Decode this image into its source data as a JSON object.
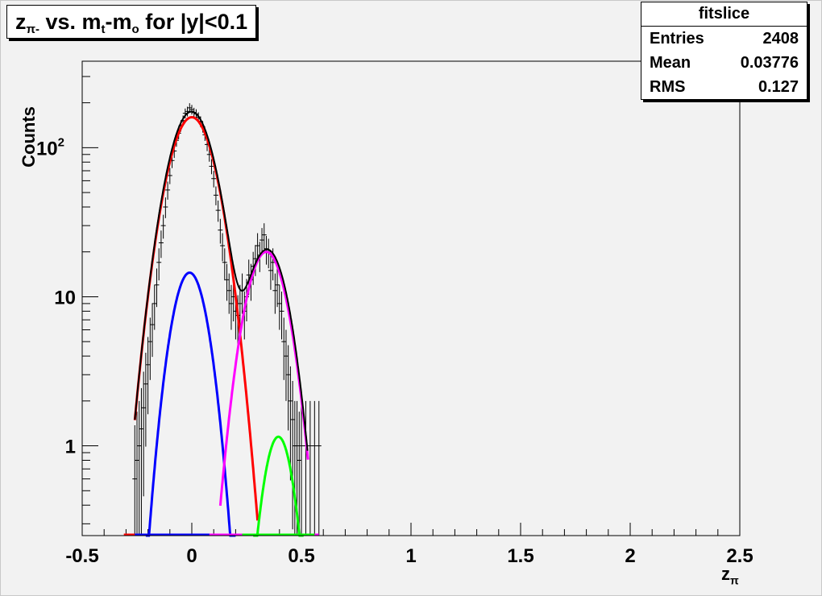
{
  "title": {
    "main": "z",
    "sub": "π-",
    "mid1": " vs. m",
    "sub2": "t",
    "mid2": "-m",
    "sub3": "o",
    "end": " for |y|<0.1"
  },
  "stats": {
    "name": "fitslice",
    "rows": [
      {
        "label": "Entries",
        "value": "2408"
      },
      {
        "label": "Mean",
        "value": "0.03776"
      },
      {
        "label": "RMS",
        "value": "0.127"
      }
    ]
  },
  "axes": {
    "ylabel": "Counts",
    "xlabel_main": "z",
    "xlabel_sub": "π"
  },
  "chart_data": {
    "type": "line",
    "xlim": [
      -0.5,
      2.5
    ],
    "ylim": [
      0.25,
      380
    ],
    "yscale": "log",
    "x_ticks": [
      "-0.5",
      "0",
      "0.5",
      "1",
      "1.5",
      "2",
      "2.5"
    ],
    "x_tick_values": [
      -0.5,
      0,
      0.5,
      1,
      1.5,
      2,
      2.5
    ],
    "y_ticks": [
      {
        "value": 1,
        "label": "1"
      },
      {
        "value": 10,
        "label": "10"
      },
      {
        "value": 100,
        "base": "10",
        "exp": "2"
      }
    ],
    "colors": {
      "total": "#000000",
      "pion": "#ff0000",
      "muon": "#0000ff",
      "kaon": "#ff00ff",
      "proton": "#00ff00"
    },
    "series": [
      {
        "key": "pion",
        "peak": 160,
        "mu": 0.0,
        "sigma": 0.085,
        "xmin": -0.26,
        "xmax": 0.3
      },
      {
        "key": "muon",
        "peak": 14.5,
        "mu": -0.01,
        "sigma": 0.065,
        "xmin": -0.21,
        "xmax": 0.2
      },
      {
        "key": "kaon",
        "peak": 20,
        "mu": 0.34,
        "sigma": 0.075,
        "xmin": 0.13,
        "xmax": 0.53
      },
      {
        "key": "proton",
        "peak": 1.15,
        "mu": 0.395,
        "sigma": 0.055,
        "xmin": 0.28,
        "xmax": 0.51
      }
    ],
    "points": [
      [
        -0.26,
        0.6
      ],
      [
        -0.25,
        0.8
      ],
      [
        -0.24,
        1.0
      ],
      [
        -0.23,
        1.3
      ],
      [
        -0.22,
        1.8
      ],
      [
        -0.21,
        2.6
      ],
      [
        -0.2,
        3.5
      ],
      [
        -0.19,
        5.0
      ],
      [
        -0.18,
        6.5
      ],
      [
        -0.17,
        9.0
      ],
      [
        -0.16,
        12
      ],
      [
        -0.15,
        17
      ],
      [
        -0.14,
        23
      ],
      [
        -0.13,
        30
      ],
      [
        -0.12,
        40
      ],
      [
        -0.11,
        52
      ],
      [
        -0.1,
        65
      ],
      [
        -0.09,
        82
      ],
      [
        -0.08,
        95
      ],
      [
        -0.07,
        112
      ],
      [
        -0.06,
        125
      ],
      [
        -0.05,
        140
      ],
      [
        -0.04,
        152
      ],
      [
        -0.03,
        170
      ],
      [
        -0.02,
        175
      ],
      [
        -0.01,
        185
      ],
      [
        0.0,
        180
      ],
      [
        0.01,
        172
      ],
      [
        0.02,
        168
      ],
      [
        0.03,
        160
      ],
      [
        0.04,
        150
      ],
      [
        0.05,
        138
      ],
      [
        0.06,
        122
      ],
      [
        0.07,
        105
      ],
      [
        0.08,
        90
      ],
      [
        0.09,
        75
      ],
      [
        0.1,
        62
      ],
      [
        0.11,
        48
      ],
      [
        0.12,
        38
      ],
      [
        0.13,
        28
      ],
      [
        0.14,
        22
      ],
      [
        0.15,
        17
      ],
      [
        0.16,
        13
      ],
      [
        0.17,
        11
      ],
      [
        0.18,
        9
      ],
      [
        0.19,
        10
      ],
      [
        0.2,
        8
      ],
      [
        0.21,
        7.5
      ],
      [
        0.22,
        9
      ],
      [
        0.23,
        11
      ],
      [
        0.24,
        8
      ],
      [
        0.25,
        10
      ],
      [
        0.26,
        14
      ],
      [
        0.27,
        13
      ],
      [
        0.28,
        16
      ],
      [
        0.29,
        18
      ],
      [
        0.3,
        22
      ],
      [
        0.31,
        19
      ],
      [
        0.32,
        24
      ],
      [
        0.33,
        26
      ],
      [
        0.34,
        21
      ],
      [
        0.35,
        20
      ],
      [
        0.36,
        15
      ],
      [
        0.37,
        17
      ],
      [
        0.38,
        11
      ],
      [
        0.39,
        12
      ],
      [
        0.4,
        9
      ],
      [
        0.41,
        8
      ],
      [
        0.42,
        5
      ],
      [
        0.43,
        4
      ],
      [
        0.44,
        3
      ],
      [
        0.45,
        2
      ],
      [
        0.46,
        1.5
      ],
      [
        0.47,
        1.0
      ],
      [
        0.48,
        1.0
      ],
      [
        0.49,
        0.8
      ],
      [
        0.5,
        1.0
      ],
      [
        0.52,
        1.0
      ],
      [
        0.54,
        1.0
      ],
      [
        0.56,
        1.0
      ],
      [
        0.58,
        1.0
      ]
    ]
  }
}
